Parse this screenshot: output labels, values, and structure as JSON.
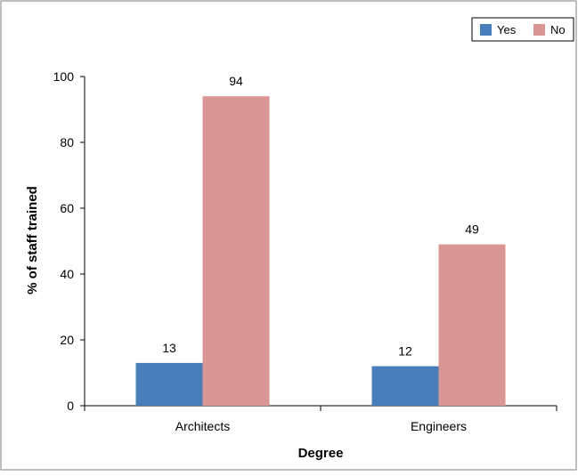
{
  "chart_data": {
    "type": "bar",
    "title": "",
    "xlabel": "Degree",
    "ylabel": "% of staff trained",
    "categories": [
      "Architects",
      "Engineers"
    ],
    "series": [
      {
        "name": "Yes",
        "values": [
          13,
          12
        ],
        "color": "#4a7ebb"
      },
      {
        "name": "No",
        "values": [
          94,
          49
        ],
        "color": "#d99694"
      }
    ],
    "ylim": [
      0,
      100
    ],
    "yticks": [
      "0",
      "20",
      "40",
      "60",
      "80",
      "100"
    ],
    "data_labels": [
      [
        "13",
        "12"
      ],
      [
        "94",
        "49"
      ]
    ],
    "legend_position": "top-right",
    "grid": false
  }
}
